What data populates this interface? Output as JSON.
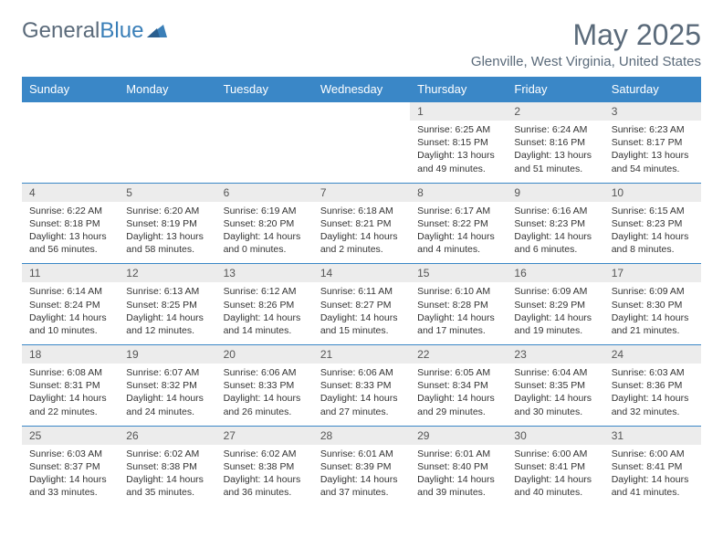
{
  "logo": {
    "text1": "General",
    "text2": "Blue"
  },
  "title": "May 2025",
  "location": "Glenville, West Virginia, United States",
  "colors": {
    "header_bg": "#3a87c7",
    "header_text": "#ffffff",
    "date_bg": "#ececec",
    "row_border": "#3a87c7",
    "title_color": "#5a6a7a",
    "body_text": "#333333"
  },
  "day_names": [
    "Sunday",
    "Monday",
    "Tuesday",
    "Wednesday",
    "Thursday",
    "Friday",
    "Saturday"
  ],
  "weeks": [
    [
      null,
      null,
      null,
      null,
      {
        "d": "1",
        "sr": "6:25 AM",
        "ss": "8:15 PM",
        "dl": "13 hours and 49 minutes."
      },
      {
        "d": "2",
        "sr": "6:24 AM",
        "ss": "8:16 PM",
        "dl": "13 hours and 51 minutes."
      },
      {
        "d": "3",
        "sr": "6:23 AM",
        "ss": "8:17 PM",
        "dl": "13 hours and 54 minutes."
      }
    ],
    [
      {
        "d": "4",
        "sr": "6:22 AM",
        "ss": "8:18 PM",
        "dl": "13 hours and 56 minutes."
      },
      {
        "d": "5",
        "sr": "6:20 AM",
        "ss": "8:19 PM",
        "dl": "13 hours and 58 minutes."
      },
      {
        "d": "6",
        "sr": "6:19 AM",
        "ss": "8:20 PM",
        "dl": "14 hours and 0 minutes."
      },
      {
        "d": "7",
        "sr": "6:18 AM",
        "ss": "8:21 PM",
        "dl": "14 hours and 2 minutes."
      },
      {
        "d": "8",
        "sr": "6:17 AM",
        "ss": "8:22 PM",
        "dl": "14 hours and 4 minutes."
      },
      {
        "d": "9",
        "sr": "6:16 AM",
        "ss": "8:23 PM",
        "dl": "14 hours and 6 minutes."
      },
      {
        "d": "10",
        "sr": "6:15 AM",
        "ss": "8:23 PM",
        "dl": "14 hours and 8 minutes."
      }
    ],
    [
      {
        "d": "11",
        "sr": "6:14 AM",
        "ss": "8:24 PM",
        "dl": "14 hours and 10 minutes."
      },
      {
        "d": "12",
        "sr": "6:13 AM",
        "ss": "8:25 PM",
        "dl": "14 hours and 12 minutes."
      },
      {
        "d": "13",
        "sr": "6:12 AM",
        "ss": "8:26 PM",
        "dl": "14 hours and 14 minutes."
      },
      {
        "d": "14",
        "sr": "6:11 AM",
        "ss": "8:27 PM",
        "dl": "14 hours and 15 minutes."
      },
      {
        "d": "15",
        "sr": "6:10 AM",
        "ss": "8:28 PM",
        "dl": "14 hours and 17 minutes."
      },
      {
        "d": "16",
        "sr": "6:09 AM",
        "ss": "8:29 PM",
        "dl": "14 hours and 19 minutes."
      },
      {
        "d": "17",
        "sr": "6:09 AM",
        "ss": "8:30 PM",
        "dl": "14 hours and 21 minutes."
      }
    ],
    [
      {
        "d": "18",
        "sr": "6:08 AM",
        "ss": "8:31 PM",
        "dl": "14 hours and 22 minutes."
      },
      {
        "d": "19",
        "sr": "6:07 AM",
        "ss": "8:32 PM",
        "dl": "14 hours and 24 minutes."
      },
      {
        "d": "20",
        "sr": "6:06 AM",
        "ss": "8:33 PM",
        "dl": "14 hours and 26 minutes."
      },
      {
        "d": "21",
        "sr": "6:06 AM",
        "ss": "8:33 PM",
        "dl": "14 hours and 27 minutes."
      },
      {
        "d": "22",
        "sr": "6:05 AM",
        "ss": "8:34 PM",
        "dl": "14 hours and 29 minutes."
      },
      {
        "d": "23",
        "sr": "6:04 AM",
        "ss": "8:35 PM",
        "dl": "14 hours and 30 minutes."
      },
      {
        "d": "24",
        "sr": "6:03 AM",
        "ss": "8:36 PM",
        "dl": "14 hours and 32 minutes."
      }
    ],
    [
      {
        "d": "25",
        "sr": "6:03 AM",
        "ss": "8:37 PM",
        "dl": "14 hours and 33 minutes."
      },
      {
        "d": "26",
        "sr": "6:02 AM",
        "ss": "8:38 PM",
        "dl": "14 hours and 35 minutes."
      },
      {
        "d": "27",
        "sr": "6:02 AM",
        "ss": "8:38 PM",
        "dl": "14 hours and 36 minutes."
      },
      {
        "d": "28",
        "sr": "6:01 AM",
        "ss": "8:39 PM",
        "dl": "14 hours and 37 minutes."
      },
      {
        "d": "29",
        "sr": "6:01 AM",
        "ss": "8:40 PM",
        "dl": "14 hours and 39 minutes."
      },
      {
        "d": "30",
        "sr": "6:00 AM",
        "ss": "8:41 PM",
        "dl": "14 hours and 40 minutes."
      },
      {
        "d": "31",
        "sr": "6:00 AM",
        "ss": "8:41 PM",
        "dl": "14 hours and 41 minutes."
      }
    ]
  ]
}
